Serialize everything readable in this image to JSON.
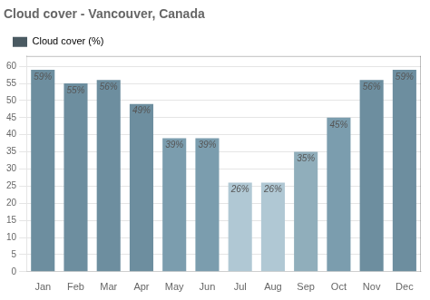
{
  "chart_data": {
    "type": "bar",
    "title": "Cloud cover - Vancouver, Canada",
    "categories": [
      "Jan",
      "Feb",
      "Mar",
      "Apr",
      "May",
      "Jun",
      "Jul",
      "Aug",
      "Sep",
      "Oct",
      "Nov",
      "Dec"
    ],
    "series": [
      {
        "name": "Cloud cover (%)",
        "color": "#4a5a62",
        "colors": [
          "#6d8e9f",
          "#6d8e9f",
          "#6d8e9f",
          "#6d8e9f",
          "#7b9dae",
          "#7b9dae",
          "#b0c8d4",
          "#b0c8d4",
          "#90aebb",
          "#7b9dae",
          "#6d8e9f",
          "#6d8e9f"
        ],
        "values": [
          59,
          55,
          56,
          49,
          39,
          39,
          26,
          26,
          35,
          45,
          56,
          59
        ],
        "value_labels": [
          "59%",
          "55%",
          "56%",
          "49%",
          "39%",
          "39%",
          "26%",
          "26%",
          "35%",
          "45%",
          "56%",
          "59%"
        ]
      }
    ],
    "ylim": [
      0,
      63
    ],
    "yticks": [
      0,
      5,
      10,
      15,
      20,
      25,
      30,
      35,
      40,
      45,
      50,
      55,
      60
    ],
    "grid": true,
    "legend": "upper left",
    "data_labels": true
  }
}
